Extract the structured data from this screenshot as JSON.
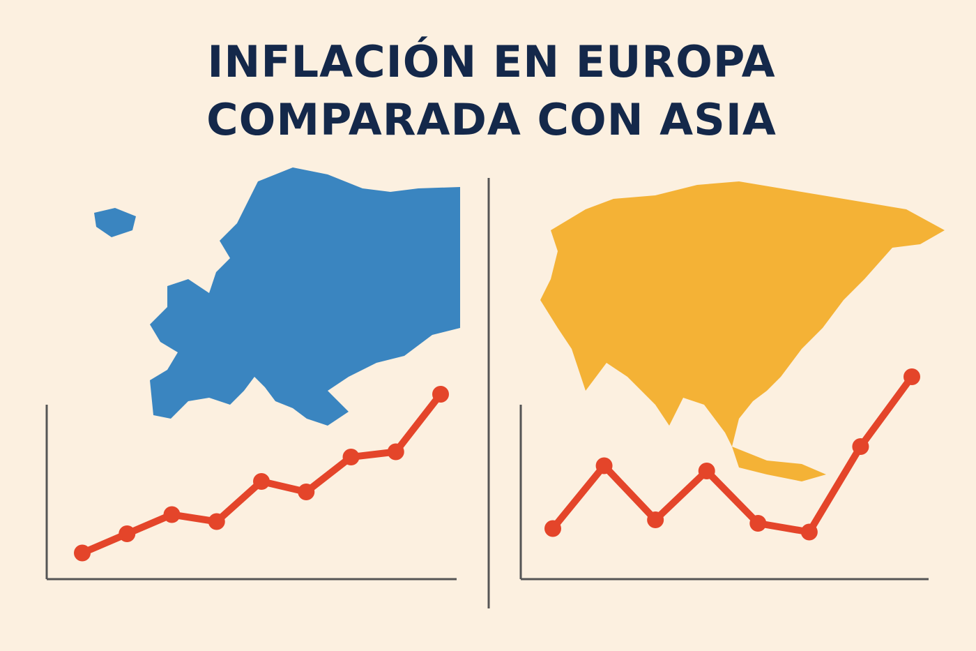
{
  "title": [
    "INFLACIÓN EN EUROPA",
    "COMPARADA CON ASIA"
  ],
  "chart_data": [
    {
      "type": "line",
      "categories": [
        null,
        null,
        null,
        null,
        null,
        null,
        null,
        null,
        null
      ],
      "series": [
        {
          "color": "#e4452a",
          "values": [
            15,
            26,
            37,
            33,
            56,
            50,
            70,
            73,
            106
          ]
        }
      ],
      "ylim": [
        0,
        120
      ]
    },
    {
      "type": "line",
      "categories": [
        null,
        null,
        null,
        null,
        null,
        null,
        null,
        null
      ],
      "series": [
        {
          "color": "#e4452a",
          "values": [
            29,
            65,
            34,
            62,
            32,
            27,
            76,
            116
          ]
        }
      ],
      "ylim": [
        0,
        120
      ]
    }
  ]
}
